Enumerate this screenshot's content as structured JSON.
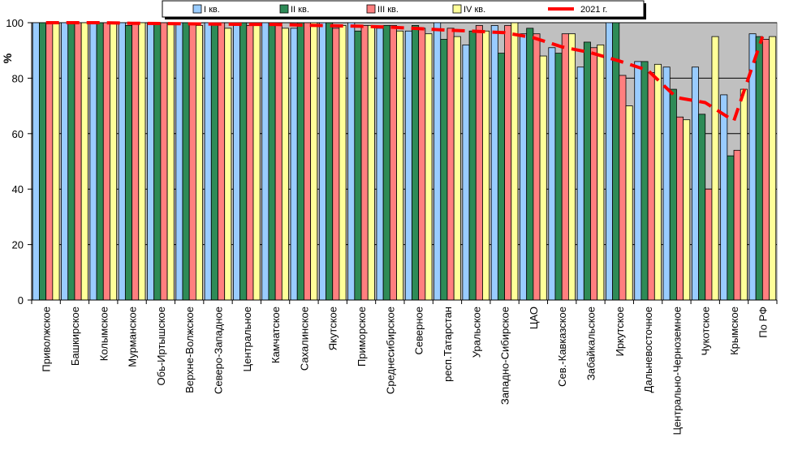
{
  "chart_data": {
    "type": "bar",
    "ylabel": "%",
    "ylim": [
      0,
      100
    ],
    "yticks": [
      0,
      20,
      40,
      60,
      80,
      100
    ],
    "grid": true,
    "legend_position": "top",
    "categories": [
      "Приволжское",
      "Башкирское",
      "Колымское",
      "Мурманское",
      "Обь-Иртышское",
      "Верхне-Волжское",
      "Северо-Западное",
      "Центральное",
      "Камчатское",
      "Сахалинское",
      "Якутское",
      "Приморское",
      "Среднесибирское",
      "Северное",
      "респ.Татарстан",
      "Уральское",
      "Западно-Сибирское",
      "ЦАО",
      "Сев.-Кавказское",
      "Забайкальское",
      "Иркутское",
      "Дальневосточное",
      "Центрально-Черноземное",
      "Чукотское",
      "Крымское",
      "По РФ"
    ],
    "series": [
      {
        "name": "I кв.",
        "kind": "bar",
        "color": "#99ccff",
        "values": [
          100,
          100,
          100,
          100,
          100,
          100,
          100,
          99,
          100,
          98,
          100,
          100,
          98,
          97,
          100,
          92,
          99,
          96,
          91,
          84,
          100,
          86,
          84,
          84,
          74,
          96
        ]
      },
      {
        "name": "II кв.",
        "kind": "bar",
        "color": "#2e8b57",
        "values": [
          100,
          100,
          100,
          99,
          100,
          100,
          100,
          100,
          100,
          100,
          100,
          97,
          99,
          99,
          94,
          97,
          89,
          98,
          89,
          93,
          100,
          86,
          76,
          67,
          52,
          95
        ]
      },
      {
        "name": "III кв.",
        "kind": "bar",
        "color": "#ff7f7f",
        "values": [
          100,
          100,
          100,
          100,
          100,
          100,
          100,
          99,
          99,
          100,
          98,
          99,
          99,
          98,
          98,
          99,
          99,
          96,
          96,
          91,
          81,
          82,
          66,
          40,
          54,
          94
        ]
      },
      {
        "name": "IV кв.",
        "kind": "bar",
        "color": "#ffff99",
        "values": [
          100,
          100,
          100,
          100,
          100,
          99,
          98,
          99,
          98,
          100,
          99,
          99,
          97,
          96,
          95,
          97,
          100,
          88,
          96,
          92,
          70,
          85,
          65,
          95,
          76,
          95
        ]
      },
      {
        "name": "2021 г.",
        "kind": "line",
        "color": "#ff0000",
        "values": [
          100,
          100,
          100,
          99.8,
          99.7,
          99.6,
          99.5,
          99.4,
          99.4,
          99.1,
          98.9,
          98.7,
          98.4,
          97.9,
          97.3,
          96.9,
          96.4,
          94.6,
          91.3,
          89.2,
          86.2,
          82.8,
          73,
          71.2,
          64.6,
          95
        ]
      }
    ]
  }
}
